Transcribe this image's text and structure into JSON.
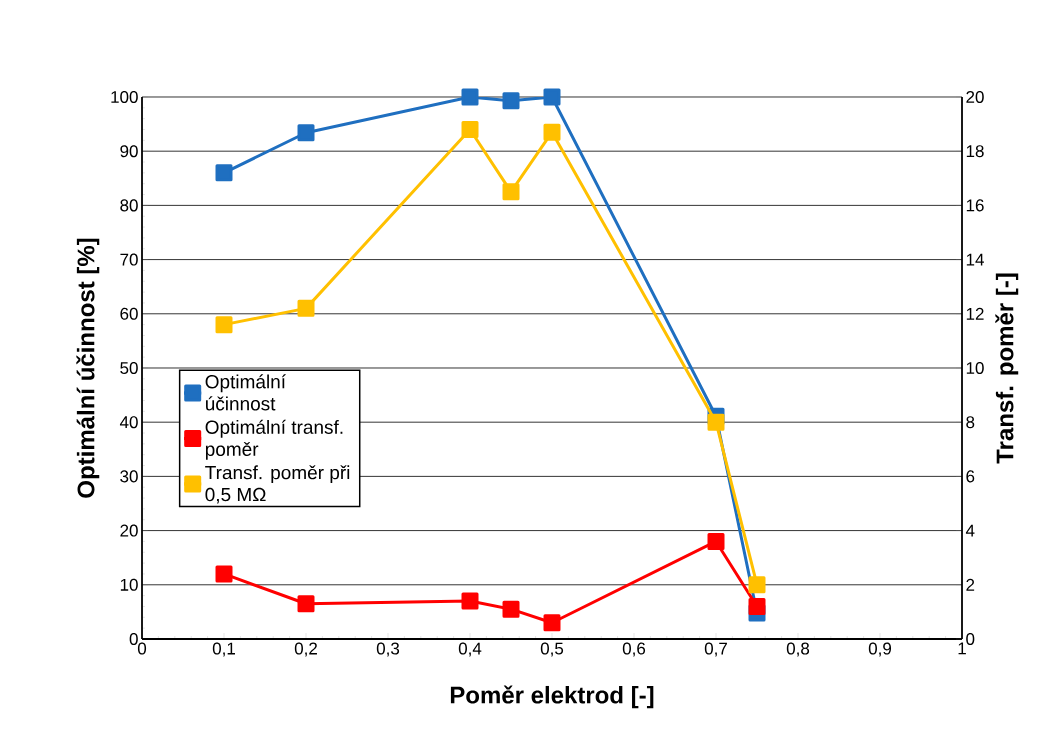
{
  "chart_data": {
    "type": "line",
    "xlabel": "Poměr elektrod [-]",
    "ylabel": "Optimální účinnost [%]",
    "y2label": "Transf. poměr [-]",
    "x": [
      0.1,
      0.2,
      0.4,
      0.45,
      0.5,
      0.7,
      0.75
    ],
    "series": [
      {
        "name": "Optimální účinnost",
        "color": "#1f6fc0",
        "values": [
          86,
          93.4,
          100,
          99.3,
          100,
          41.1,
          4.8
        ]
      },
      {
        "name": "Optimální transf. poměr",
        "color": "#ff0000",
        "axis": "y2",
        "values": [
          2.4,
          1.3,
          1.4,
          1.1,
          0.6,
          3.6,
          1.2
        ]
      },
      {
        "name": "Transf. poměr při 0,5 MΩ",
        "color": "#ffc000",
        "axis": "y2",
        "values": [
          11.6,
          12.2,
          18.8,
          16.5,
          18.7,
          8.0,
          2.0
        ]
      }
    ],
    "xlim": [
      0,
      1
    ],
    "xticks": [
      0,
      {
        "value": 0.1,
        "label": "0,1"
      },
      {
        "value": 0.2,
        "label": "0,2"
      },
      {
        "value": 0.3,
        "label": "0,3"
      },
      {
        "value": 0.4,
        "label": "0,4"
      },
      {
        "value": 0.5,
        "label": "0,5"
      },
      {
        "value": 0.6,
        "label": "0,6"
      },
      {
        "value": 0.7,
        "label": "0,7"
      },
      {
        "value": 0.8,
        "label": "0,8"
      },
      {
        "value": 0.9,
        "label": "0,9"
      },
      1
    ],
    "ylim": [
      0,
      100
    ],
    "yticks": [
      0,
      10,
      20,
      30,
      40,
      50,
      60,
      70,
      80,
      90,
      100
    ],
    "y2lim": [
      0,
      20
    ],
    "y2ticks": [
      0,
      2,
      4,
      6,
      8,
      10,
      12,
      14,
      16,
      18,
      20
    ],
    "grid": "y",
    "legend": "left",
    "marker": "square",
    "line_style": "solid"
  }
}
